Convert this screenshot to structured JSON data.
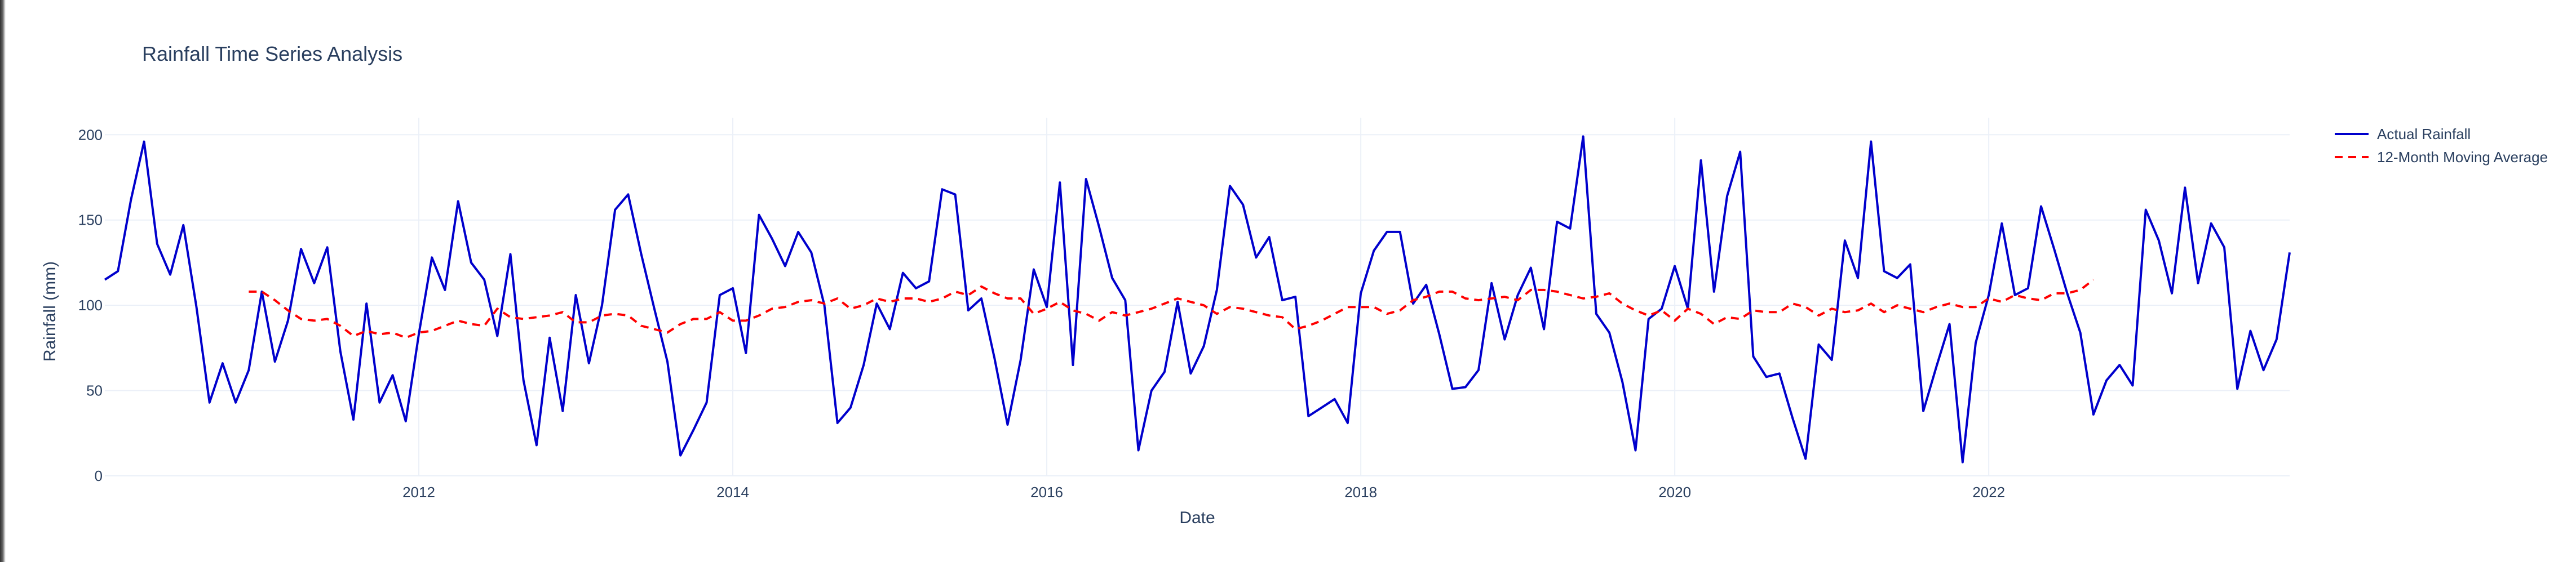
{
  "chart_data": {
    "type": "line",
    "title": "Rainfall Time Series Analysis",
    "xlabel": "Date",
    "ylabel": "Rainfall (mm)",
    "xlim": [
      "2010-01-01",
      "2023-12-01"
    ],
    "ylim": [
      0,
      210
    ],
    "x_tick_labels": [
      "2012",
      "2014",
      "2016",
      "2018",
      "2020",
      "2022"
    ],
    "y_tick_labels": [
      "0",
      "50",
      "100",
      "150",
      "200"
    ],
    "y_tick_values": [
      0,
      50,
      100,
      150,
      200
    ],
    "grid": true,
    "legend_position": "top-right",
    "x_start": "2010-01",
    "series": [
      {
        "name": "Actual Rainfall",
        "color": "#0000cc",
        "dash": "solid",
        "values": [
          115,
          120,
          162,
          196,
          136,
          118,
          147,
          99,
          43,
          66,
          43,
          62,
          108,
          67,
          91,
          133,
          113,
          134,
          73,
          33,
          101,
          43,
          59,
          32,
          83,
          128,
          109,
          161,
          125,
          115,
          82,
          130,
          56,
          18,
          81,
          38,
          106,
          66,
          100,
          156,
          165,
          130,
          98,
          67,
          12,
          27,
          43,
          106,
          110,
          72,
          153,
          139,
          123,
          143,
          131,
          100,
          31,
          40,
          65,
          101,
          86,
          119,
          110,
          114,
          168,
          165,
          97,
          104,
          69,
          30,
          68,
          121,
          99,
          172,
          65,
          174,
          146,
          116,
          103,
          15,
          50,
          61,
          102,
          60,
          76,
          109,
          170,
          159,
          128,
          140,
          103,
          105,
          35,
          40,
          45,
          31,
          107,
          132,
          143,
          143,
          101,
          112,
          83,
          51,
          52,
          62,
          113,
          80,
          106,
          122,
          86,
          149,
          145,
          199,
          95,
          84,
          55,
          15,
          92,
          98,
          123,
          98,
          185,
          108,
          164,
          190,
          70,
          58,
          60,
          34,
          10,
          77,
          68,
          138,
          116,
          196,
          120,
          116,
          124,
          38,
          64,
          89,
          8,
          78,
          106,
          148,
          106,
          110,
          158,
          133,
          107,
          84,
          36,
          56,
          65,
          53,
          156,
          138,
          107,
          169,
          113,
          148,
          134,
          51,
          85,
          62,
          80,
          131
        ]
      },
      {
        "name": "12-Month Moving Average",
        "color": "#ff0000",
        "dash": "dashed",
        "start_index": 11,
        "values": [
          108,
          108,
          103,
          97,
          92,
          91,
          92,
          88,
          82,
          85,
          83,
          84,
          81,
          84,
          85,
          88,
          91,
          89,
          88,
          98,
          93,
          92,
          93,
          94,
          96,
          90,
          90,
          94,
          95,
          94,
          88,
          86,
          84,
          89,
          92,
          92,
          96,
          91,
          91,
          94,
          98,
          99,
          102,
          103,
          101,
          104,
          98,
          100,
          104,
          102,
          104,
          104,
          102,
          104,
          108,
          106,
          111,
          107,
          104,
          104,
          95,
          98,
          102,
          97,
          95,
          91,
          96,
          94,
          96,
          98,
          101,
          104,
          102,
          100,
          95,
          99,
          98,
          96,
          94,
          93,
          86,
          88,
          91,
          95,
          99,
          99,
          99,
          95,
          97,
          103,
          105,
          108,
          108,
          104,
          103,
          104,
          105,
          103,
          109,
          109,
          108,
          106,
          104,
          105,
          107,
          101,
          97,
          94,
          97,
          91,
          98,
          95,
          89,
          93,
          92,
          97,
          96,
          96,
          101,
          99,
          94,
          98,
          96,
          97,
          101,
          96,
          100,
          98,
          96,
          99,
          101,
          99,
          99,
          104,
          102,
          106,
          104,
          103,
          107,
          107,
          109,
          115
        ]
      }
    ]
  }
}
